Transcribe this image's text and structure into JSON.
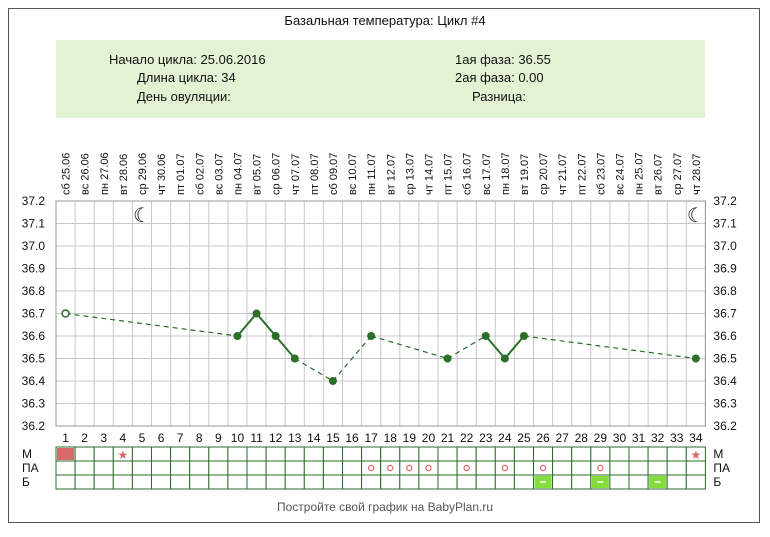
{
  "header": {
    "title": "Базальная температура: Цикл #4",
    "cycle_start_label": "Начало цикла:",
    "cycle_start_value": "25.06.2016",
    "cycle_length_label": "Длина цикла:",
    "cycle_length_value": "34",
    "ovulation_label": "День овуляции:",
    "ovulation_value": "",
    "phase1_label": "1ая фаза:",
    "phase1_value": "36.55",
    "phase2_label": "2ая фаза:",
    "phase2_value": "0.00",
    "difference_label": "Разница:",
    "difference_value": ""
  },
  "footer": {
    "text": "Постройте свой график на BabyPlan.ru"
  },
  "colors": {
    "line": "#2a6e2a",
    "grid": "#c8c8c8",
    "info_bg": "#e4f2d4",
    "menstruation": "#d66a6a",
    "marker_red": "#e06666",
    "green_cell": "#86dc3c"
  },
  "chart_data": {
    "type": "line",
    "title": "Базальная температура: Цикл #4",
    "xlabel": "",
    "ylabel": "",
    "ylim": [
      36.2,
      37.2
    ],
    "y_ticks": [
      "37.2",
      "37.1",
      "37.0",
      "36.9",
      "36.8",
      "36.7",
      "36.6",
      "36.5",
      "36.4",
      "36.3",
      "36.2"
    ],
    "grid": true,
    "days": [
      1,
      2,
      3,
      4,
      5,
      6,
      7,
      8,
      9,
      10,
      11,
      12,
      13,
      14,
      15,
      16,
      17,
      18,
      19,
      20,
      21,
      22,
      23,
      24,
      25,
      26,
      27,
      28,
      29,
      30,
      31,
      32,
      33,
      34
    ],
    "weekdays": [
      "сб",
      "вс",
      "пн",
      "вт",
      "ср",
      "чт",
      "пт",
      "сб",
      "вс",
      "пн",
      "вт",
      "ср",
      "чт",
      "пт",
      "сб",
      "вс",
      "пн",
      "вт",
      "ср",
      "чт",
      "пт",
      "сб",
      "вс",
      "пн",
      "вт",
      "ср",
      "чт",
      "пт",
      "сб",
      "вс",
      "пн",
      "вт",
      "ср",
      "чт"
    ],
    "dates": [
      "25.06",
      "26.06",
      "27.06",
      "28.06",
      "29.06",
      "30.06",
      "01.07",
      "02.07",
      "03.07",
      "04.07",
      "05.07",
      "06.07",
      "07.07",
      "08.07",
      "09.07",
      "10.07",
      "11.07",
      "12.07",
      "13.07",
      "14.07",
      "15.07",
      "16.07",
      "17.07",
      "18.07",
      "19.07",
      "20.07",
      "21.07",
      "22.07",
      "23.07",
      "24.07",
      "25.07",
      "26.07",
      "27.07",
      "28.07"
    ],
    "moon_days": [
      5,
      34
    ],
    "series": [
      {
        "points": [
          {
            "day": 1,
            "value": 36.7,
            "hollow": true
          },
          {
            "day": 10,
            "value": 36.6
          },
          {
            "day": 11,
            "value": 36.7
          },
          {
            "day": 12,
            "value": 36.6
          },
          {
            "day": 13,
            "value": 36.5
          },
          {
            "day": 15,
            "value": 36.4
          },
          {
            "day": 17,
            "value": 36.6
          },
          {
            "day": 21,
            "value": 36.5
          },
          {
            "day": 23,
            "value": 36.6
          },
          {
            "day": 24,
            "value": 36.5
          },
          {
            "day": 25,
            "value": 36.6
          },
          {
            "day": 34,
            "value": 36.5
          }
        ]
      }
    ],
    "bottom_rows": [
      {
        "label": "М",
        "filled_days": [
          1
        ],
        "star_days": [
          4,
          34
        ]
      },
      {
        "label": "ПА",
        "circle_days": [
          17,
          18,
          19,
          20,
          22,
          24,
          26,
          29
        ]
      },
      {
        "label": "Б",
        "dash_days": [
          26,
          29,
          32
        ]
      }
    ]
  }
}
